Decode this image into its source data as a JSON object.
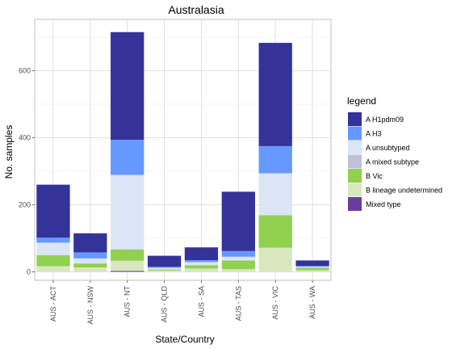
{
  "chart_data": {
    "type": "bar",
    "stacked": true,
    "title": "Australasia",
    "xlabel": "State/Country",
    "ylabel": "No. samples",
    "ylim": [
      0,
      740
    ],
    "yticks": [
      0,
      200,
      400,
      600
    ],
    "grid": true,
    "legend_title": "legend",
    "legend_position": "right",
    "categories": [
      "AUS - ACT",
      "AUS - NSW",
      "AUS - NT",
      "AUS - QLD",
      "AUS - SA",
      "AUS - TAS",
      "AUS - VIC",
      "AUS - WA"
    ],
    "series": [
      {
        "name": "Mixed type",
        "color": "#6a3d9a",
        "values": [
          0,
          0,
          3,
          0,
          0,
          0,
          0,
          0
        ]
      },
      {
        "name": "B lineage undetermined",
        "color": "#d9e7bf",
        "values": [
          17,
          13,
          30,
          4,
          10,
          8,
          72,
          5
        ]
      },
      {
        "name": "B Vic",
        "color": "#92d050",
        "values": [
          33,
          12,
          34,
          3,
          10,
          26,
          97,
          7
        ]
      },
      {
        "name": "A mixed subtype",
        "color": "#c0c0dd",
        "values": [
          0,
          0,
          0,
          0,
          0,
          0,
          0,
          0
        ]
      },
      {
        "name": "A unsubtyped",
        "color": "#dbe5f5",
        "values": [
          37,
          15,
          222,
          5,
          9,
          11,
          125,
          3
        ]
      },
      {
        "name": "A H3",
        "color": "#6699ff",
        "values": [
          15,
          18,
          105,
          3,
          6,
          17,
          81,
          3
        ]
      },
      {
        "name": "A H1pdm09",
        "color": "#333399",
        "values": [
          158,
          57,
          321,
          33,
          38,
          177,
          308,
          16
        ]
      }
    ],
    "legend_order": [
      "A H1pdm09",
      "A H3",
      "A unsubtyped",
      "A mixed subtype",
      "B Vic",
      "B lineage undetermined",
      "Mixed type"
    ]
  }
}
